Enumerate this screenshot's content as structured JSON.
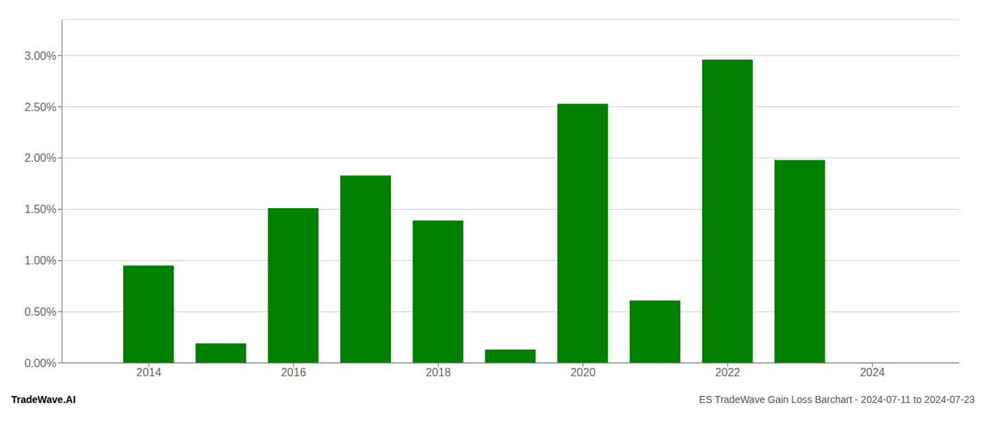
{
  "chart_data": {
    "type": "bar",
    "x": [
      2014,
      2015,
      2016,
      2017,
      2018,
      2019,
      2020,
      2021,
      2022,
      2023,
      2024
    ],
    "values": [
      0.0095,
      0.0019,
      0.0151,
      0.0183,
      0.0139,
      0.0013,
      0.0253,
      0.0061,
      0.0296,
      0.0198,
      0.0
    ],
    "color": "#008000",
    "xlim": [
      2012.8,
      2025.2
    ],
    "xticks": [
      2014,
      2016,
      2018,
      2020,
      2022,
      2024
    ],
    "ylim": [
      0,
      0.0335
    ],
    "yticks": [
      {
        "value": 0.0,
        "label": "0.00%"
      },
      {
        "value": 0.005,
        "label": "0.50%"
      },
      {
        "value": 0.01,
        "label": "1.00%"
      },
      {
        "value": 0.015,
        "label": "1.50%"
      },
      {
        "value": 0.02,
        "label": "2.00%"
      },
      {
        "value": 0.025,
        "label": "2.50%"
      },
      {
        "value": 0.03,
        "label": "3.00%"
      }
    ],
    "grid": "y",
    "annotations": [
      "TradeWave.AI",
      "ES TradeWave Gain Loss Barchart - 2024-07-11 to 2024-07-23"
    ]
  }
}
